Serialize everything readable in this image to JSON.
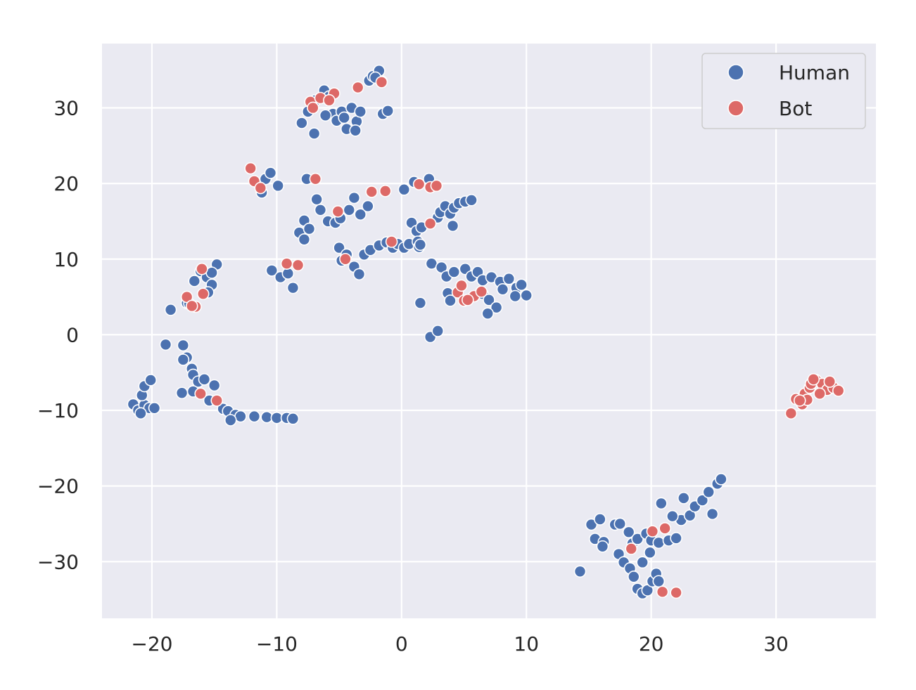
{
  "chart_data": {
    "type": "scatter",
    "title": "",
    "xlabel": "",
    "ylabel": "",
    "xlim": [
      -24,
      38
    ],
    "ylim": [
      -37.5,
      38.5
    ],
    "xticks": [
      -20,
      -10,
      0,
      10,
      20,
      30
    ],
    "yticks": [
      -30,
      -20,
      -10,
      0,
      10,
      20,
      30
    ],
    "xtick_labels": [
      "−20",
      "−10",
      "0",
      "10",
      "20",
      "30"
    ],
    "ytick_labels": [
      "−30",
      "−20",
      "−10",
      "0",
      "10",
      "20",
      "30"
    ],
    "grid": true,
    "background_color": "#eaeaf2",
    "legend": {
      "placement": "top-right"
    },
    "series": [
      {
        "name": "Human",
        "color": "#4c72b0",
        "points": [
          [
            -8,
            28
          ],
          [
            -7.5,
            29.5
          ],
          [
            -6.9,
            31
          ],
          [
            -6.2,
            32.3
          ],
          [
            -5.8,
            31.5
          ],
          [
            -5.5,
            29.2
          ],
          [
            -5.2,
            28.3
          ],
          [
            -4.8,
            29.5
          ],
          [
            -4.4,
            27.2
          ],
          [
            -4,
            30
          ],
          [
            -3.6,
            28.2
          ],
          [
            -3.3,
            29.5
          ],
          [
            -3.7,
            27
          ],
          [
            -7,
            26.6
          ],
          [
            -6.1,
            29
          ],
          [
            -4.6,
            28.7
          ],
          [
            -2.6,
            33.6
          ],
          [
            -2.3,
            34.2
          ],
          [
            -1.8,
            34.9
          ],
          [
            -1.6,
            33.5
          ],
          [
            -2.1,
            34
          ],
          [
            -1.5,
            29.2
          ],
          [
            -1.1,
            29.6
          ],
          [
            -11.2,
            18.8
          ],
          [
            -10.9,
            20.6
          ],
          [
            -10.5,
            21.4
          ],
          [
            -9.9,
            19.7
          ],
          [
            -7.6,
            20.6
          ],
          [
            -6.8,
            17.9
          ],
          [
            -6.5,
            16.5
          ],
          [
            -5.9,
            15
          ],
          [
            -5.3,
            14.8
          ],
          [
            -4.9,
            15.4
          ],
          [
            -4.2,
            16.5
          ],
          [
            -3.8,
            18.1
          ],
          [
            -3.3,
            15.9
          ],
          [
            -2.7,
            17
          ],
          [
            0.2,
            19.2
          ],
          [
            2.2,
            20.6
          ],
          [
            1,
            20.2
          ],
          [
            -8.2,
            13.5
          ],
          [
            -7.8,
            15.1
          ],
          [
            -7.4,
            14
          ],
          [
            -7.8,
            12.6
          ],
          [
            -5,
            11.5
          ],
          [
            -4.8,
            9.8
          ],
          [
            -4.4,
            10.6
          ],
          [
            -3.8,
            9
          ],
          [
            -3.4,
            8
          ],
          [
            -3,
            10.6
          ],
          [
            -2.5,
            11.2
          ],
          [
            -1.8,
            11.8
          ],
          [
            -1.2,
            12.2
          ],
          [
            -0.7,
            11.5
          ],
          [
            -0.3,
            12
          ],
          [
            0.2,
            11.5
          ],
          [
            0.6,
            12
          ],
          [
            0.8,
            14.8
          ],
          [
            1.2,
            13.7
          ],
          [
            1.3,
            12.3
          ],
          [
            1.4,
            11.6
          ],
          [
            1.6,
            14.2
          ],
          [
            1.5,
            11.9
          ],
          [
            2.9,
            15.5
          ],
          [
            3.1,
            16.2
          ],
          [
            3.5,
            17
          ],
          [
            3.9,
            16
          ],
          [
            4.2,
            16.8
          ],
          [
            4.6,
            17.4
          ],
          [
            5.1,
            17.6
          ],
          [
            5.6,
            17.8
          ],
          [
            4.1,
            14.4
          ],
          [
            -10.4,
            8.5
          ],
          [
            -9.7,
            7.6
          ],
          [
            -9.1,
            8.1
          ],
          [
            -8.7,
            6.2
          ],
          [
            2.4,
            9.4
          ],
          [
            3.2,
            8.9
          ],
          [
            3.6,
            7.7
          ],
          [
            4.2,
            8.3
          ],
          [
            5.1,
            8.7
          ],
          [
            5.6,
            7.7
          ],
          [
            6.1,
            8.3
          ],
          [
            6.5,
            7.2
          ],
          [
            7.2,
            7.6
          ],
          [
            7.9,
            7
          ],
          [
            8.1,
            6
          ],
          [
            8.6,
            7.4
          ],
          [
            9.2,
            6.2
          ],
          [
            9.6,
            6.6
          ],
          [
            10,
            5.2
          ],
          [
            3.7,
            5.5
          ],
          [
            3.9,
            4.5
          ],
          [
            6.5,
            5.4
          ],
          [
            7,
            4.6
          ],
          [
            7.6,
            3.6
          ],
          [
            6.9,
            2.8
          ],
          [
            9.1,
            5.1
          ],
          [
            1.5,
            4.2
          ],
          [
            2.3,
            -0.3
          ],
          [
            2.9,
            0.5
          ],
          [
            -18.9,
            -1.3
          ],
          [
            -17.5,
            -1.4
          ],
          [
            -17.2,
            -3
          ],
          [
            -16.8,
            -4.5
          ],
          [
            -16.7,
            -5.3
          ],
          [
            -16.3,
            -6.2
          ],
          [
            -15.8,
            -5.9
          ],
          [
            -15,
            -6.7
          ],
          [
            -17.6,
            -7.7
          ],
          [
            -16.7,
            -7.5
          ],
          [
            -15.4,
            -8.7
          ],
          [
            -14.3,
            -9.8
          ],
          [
            -13.9,
            -10.1
          ],
          [
            -13.3,
            -10.6
          ],
          [
            -12.9,
            -10.8
          ],
          [
            -13.7,
            -11.3
          ],
          [
            -11.8,
            -10.8
          ],
          [
            -10.8,
            -10.9
          ],
          [
            -10,
            -11
          ],
          [
            -9.2,
            -11
          ],
          [
            -8.7,
            -11.1
          ],
          [
            -21.5,
            -9.2
          ],
          [
            -21.1,
            -10
          ],
          [
            -20.6,
            -9.3
          ],
          [
            -20.8,
            -8
          ],
          [
            -20.6,
            -6.8
          ],
          [
            -20.1,
            -6
          ],
          [
            -20.2,
            -9.7
          ],
          [
            -19.8,
            -9.7
          ],
          [
            -20.9,
            -10.4
          ],
          [
            -18.5,
            3.3
          ],
          [
            -17.2,
            4.2
          ],
          [
            -16.6,
            7.1
          ],
          [
            -16.1,
            8.4
          ],
          [
            -15.6,
            7.6
          ],
          [
            -15.2,
            6.6
          ],
          [
            -15.5,
            5.6
          ],
          [
            -14.8,
            9.3
          ],
          [
            -15.2,
            8.2
          ],
          [
            -17,
            4.1
          ],
          [
            -17.5,
            -3.3
          ],
          [
            14.3,
            -31.3
          ],
          [
            15.2,
            -25.1
          ],
          [
            15.5,
            -27
          ],
          [
            16.2,
            -27.4
          ],
          [
            16.1,
            -28
          ],
          [
            15.9,
            -24.4
          ],
          [
            17.1,
            -25.1
          ],
          [
            17.5,
            -25
          ],
          [
            18.2,
            -26.1
          ],
          [
            18.5,
            -27.6
          ],
          [
            17.4,
            -29
          ],
          [
            17.8,
            -30.1
          ],
          [
            18.3,
            -30.9
          ],
          [
            18.6,
            -32
          ],
          [
            18.9,
            -33.6
          ],
          [
            19.3,
            -34.2
          ],
          [
            19.7,
            -33.8
          ],
          [
            20.1,
            -32.6
          ],
          [
            20.4,
            -31.6
          ],
          [
            20.6,
            -32.6
          ],
          [
            19.3,
            -30.1
          ],
          [
            18.9,
            -27
          ],
          [
            19.6,
            -26.3
          ],
          [
            20,
            -27.2
          ],
          [
            20.6,
            -27.5
          ],
          [
            21.4,
            -27.2
          ],
          [
            22,
            -26.9
          ],
          [
            22.4,
            -24.5
          ],
          [
            23.1,
            -23.9
          ],
          [
            22.6,
            -21.6
          ],
          [
            23.5,
            -22.7
          ],
          [
            24.1,
            -21.9
          ],
          [
            24.6,
            -20.8
          ],
          [
            25.3,
            -19.7
          ],
          [
            25.6,
            -19.1
          ],
          [
            24.9,
            -23.7
          ],
          [
            20.8,
            -22.3
          ],
          [
            21.7,
            -24
          ],
          [
            19.9,
            -28.8
          ]
        ]
      },
      {
        "name": "Bot",
        "color": "#dd6967",
        "points": [
          [
            -7.3,
            30.8
          ],
          [
            -6.5,
            31.3
          ],
          [
            -5.4,
            31.9
          ],
          [
            -3.5,
            32.7
          ],
          [
            -1.6,
            33.4
          ],
          [
            -5.8,
            31
          ],
          [
            -7.1,
            30
          ],
          [
            -12.1,
            22
          ],
          [
            -11.8,
            20.3
          ],
          [
            -11.3,
            19.4
          ],
          [
            -6.9,
            20.6
          ],
          [
            -5.1,
            16.3
          ],
          [
            -4.5,
            10
          ],
          [
            -2.4,
            18.9
          ],
          [
            -1.3,
            19
          ],
          [
            1.4,
            19.9
          ],
          [
            2.3,
            19.5
          ],
          [
            2.8,
            19.7
          ],
          [
            2.3,
            14.7
          ],
          [
            -9.2,
            9.4
          ],
          [
            -8.3,
            9.2
          ],
          [
            4.5,
            5.6
          ],
          [
            4.8,
            6.5
          ],
          [
            5,
            4.5
          ],
          [
            5.8,
            5.1
          ],
          [
            6.4,
            5.7
          ],
          [
            5.3,
            4.6
          ],
          [
            -0.8,
            12.3
          ],
          [
            -17.2,
            5
          ],
          [
            -16.5,
            3.7
          ],
          [
            -16,
            8.7
          ],
          [
            -15.9,
            5.4
          ],
          [
            -16.8,
            3.8
          ],
          [
            -16.1,
            -7.8
          ],
          [
            -14.8,
            -8.7
          ],
          [
            18.4,
            -28.3
          ],
          [
            20.1,
            -26
          ],
          [
            21.1,
            -25.6
          ],
          [
            20.9,
            -34
          ],
          [
            22,
            -34.1
          ],
          [
            31.2,
            -10.4
          ],
          [
            31.6,
            -8.5
          ],
          [
            32.1,
            -9.2
          ],
          [
            32.3,
            -7.8
          ],
          [
            32.7,
            -7
          ],
          [
            33.2,
            -6
          ],
          [
            33.7,
            -6.5
          ],
          [
            34.1,
            -7.3
          ],
          [
            34.6,
            -7
          ],
          [
            35,
            -7.4
          ],
          [
            32.8,
            -6.5
          ],
          [
            33.5,
            -7.8
          ],
          [
            32.5,
            -8.6
          ],
          [
            31.9,
            -8.7
          ],
          [
            34.3,
            -6.2
          ],
          [
            33,
            -5.9
          ]
        ]
      }
    ]
  }
}
